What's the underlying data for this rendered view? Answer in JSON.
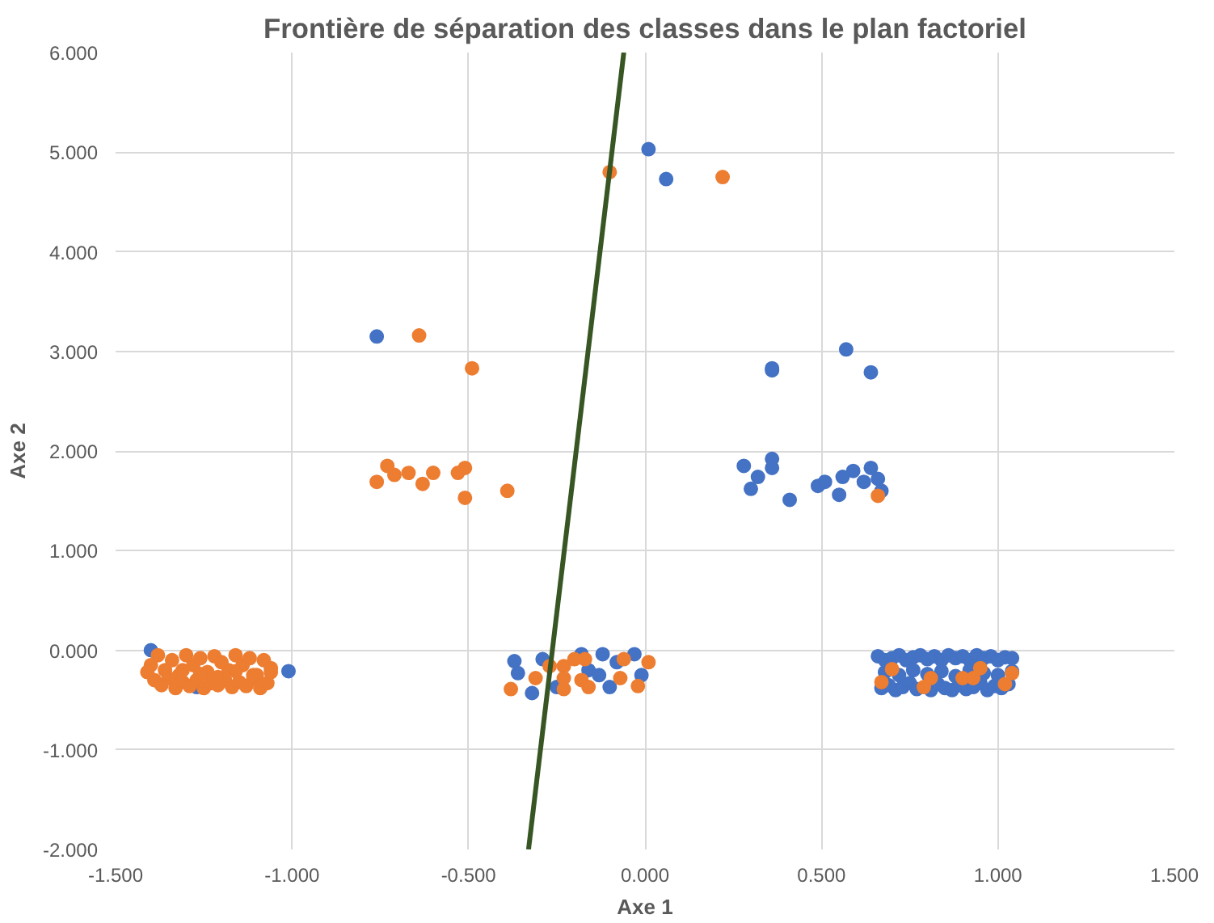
{
  "chart_data": {
    "type": "scatter",
    "title": "Frontière de séparation des classes dans le plan factoriel",
    "xlabel": "Axe 1",
    "ylabel": "Axe 2",
    "xlim": [
      -1.5,
      1.5
    ],
    "ylim": [
      -2,
      6
    ],
    "xticks": [
      {
        "value": -1.5,
        "label": "-1.500"
      },
      {
        "value": -1,
        "label": "-1.000"
      },
      {
        "value": -0.5,
        "label": "-0.500"
      },
      {
        "value": 0,
        "label": "0.000"
      },
      {
        "value": 0.5,
        "label": "0.500"
      },
      {
        "value": 1,
        "label": "1.000"
      },
      {
        "value": 1.5,
        "label": "1.500"
      }
    ],
    "yticks": [
      {
        "value": -2,
        "label": "-2.000"
      },
      {
        "value": -1,
        "label": "-1.000"
      },
      {
        "value": 0,
        "label": "0.000"
      },
      {
        "value": 1,
        "label": "1.000"
      },
      {
        "value": 2,
        "label": "2.000"
      },
      {
        "value": 3,
        "label": "3.000"
      },
      {
        "value": 4,
        "label": "4.000"
      },
      {
        "value": 5,
        "label": "5.000"
      },
      {
        "value": 6,
        "label": "6.000"
      }
    ],
    "grid": true,
    "marker": "circle",
    "series": [
      {
        "color": "#4472c4",
        "x": [
          -0.76,
          0.01,
          0.06,
          0.36,
          0.36,
          0.57,
          0.64,
          0.28,
          0.32,
          0.3,
          0.36,
          0.36,
          0.41,
          0.49,
          0.51,
          0.55,
          0.56,
          0.59,
          0.62,
          0.64,
          0.66,
          0.67,
          -1.4,
          -1.01,
          -1.27,
          -0.37,
          -0.36,
          -0.32,
          -0.29,
          -0.18,
          -0.12,
          -0.13,
          -0.1,
          -0.03,
          -0.01,
          -0.25,
          -0.16,
          -0.08,
          0.66,
          0.68,
          0.7,
          0.72,
          0.74,
          0.76,
          0.78,
          0.8,
          0.82,
          0.84,
          0.86,
          0.88,
          0.9,
          0.92,
          0.94,
          0.96,
          0.98,
          1.0,
          1.02,
          1.04,
          0.67,
          0.69,
          0.71,
          0.73,
          0.75,
          0.77,
          0.81,
          0.83,
          0.85,
          0.87,
          0.89,
          0.91,
          0.93,
          0.95,
          0.97,
          0.99,
          1.01,
          1.03,
          0.68,
          0.72,
          0.76,
          0.8,
          0.84,
          0.88,
          0.92,
          0.96,
          1.0,
          1.04
        ],
        "values": [
          3.15,
          5.03,
          4.73,
          2.81,
          2.83,
          3.02,
          2.79,
          1.85,
          1.74,
          1.62,
          1.92,
          1.83,
          1.51,
          1.65,
          1.69,
          1.56,
          1.74,
          1.8,
          1.69,
          1.83,
          1.72,
          1.6,
          0.0,
          -0.21,
          -0.37,
          -0.11,
          -0.23,
          -0.43,
          -0.09,
          -0.04,
          -0.04,
          -0.25,
          -0.37,
          -0.04,
          -0.25,
          -0.37,
          -0.2,
          -0.12,
          -0.06,
          -0.1,
          -0.08,
          -0.05,
          -0.1,
          -0.07,
          -0.05,
          -0.09,
          -0.06,
          -0.1,
          -0.05,
          -0.08,
          -0.06,
          -0.1,
          -0.05,
          -0.08,
          -0.06,
          -0.1,
          -0.07,
          -0.08,
          -0.38,
          -0.35,
          -0.4,
          -0.37,
          -0.33,
          -0.39,
          -0.4,
          -0.34,
          -0.38,
          -0.4,
          -0.35,
          -0.39,
          -0.37,
          -0.33,
          -0.4,
          -0.36,
          -0.38,
          -0.34,
          -0.22,
          -0.25,
          -0.2,
          -0.24,
          -0.21,
          -0.26,
          -0.2,
          -0.23,
          -0.25,
          -0.21
        ]
      },
      {
        "color": "#ed7d31",
        "x": [
          -0.64,
          -0.49,
          -0.1,
          0.22,
          -0.76,
          -0.73,
          -0.71,
          -0.67,
          -0.63,
          -0.6,
          -0.53,
          -0.51,
          -0.51,
          -0.39,
          0.66,
          0.7,
          0.67,
          0.81,
          0.79,
          0.9,
          0.93,
          0.95,
          1.04,
          1.02,
          -0.38,
          -0.31,
          -0.27,
          -0.23,
          -0.23,
          -0.2,
          -0.17,
          -0.18,
          -0.16,
          -0.06,
          -0.07,
          -0.02,
          0.01,
          -0.23,
          -1.4,
          -1.38,
          -1.36,
          -1.34,
          -1.32,
          -1.3,
          -1.28,
          -1.26,
          -1.24,
          -1.22,
          -1.2,
          -1.18,
          -1.16,
          -1.14,
          -1.12,
          -1.1,
          -1.08,
          -1.06,
          -1.39,
          -1.37,
          -1.35,
          -1.33,
          -1.31,
          -1.29,
          -1.27,
          -1.25,
          -1.23,
          -1.21,
          -1.19,
          -1.17,
          -1.15,
          -1.13,
          -1.11,
          -1.09,
          -1.07,
          -1.41,
          -1.31,
          -1.26,
          -1.21,
          -1.16,
          -1.11,
          -1.06
        ],
        "values": [
          3.16,
          2.83,
          4.8,
          4.75,
          1.69,
          1.85,
          1.76,
          1.78,
          1.67,
          1.78,
          1.78,
          1.83,
          1.53,
          1.6,
          1.55,
          -0.19,
          -0.32,
          -0.28,
          -0.37,
          -0.28,
          -0.28,
          -0.18,
          -0.23,
          -0.34,
          -0.39,
          -0.28,
          -0.16,
          -0.16,
          -0.28,
          -0.09,
          -0.09,
          -0.3,
          -0.37,
          -0.09,
          -0.28,
          -0.36,
          -0.12,
          -0.39,
          -0.15,
          -0.05,
          -0.2,
          -0.1,
          -0.25,
          -0.05,
          -0.15,
          -0.08,
          -0.22,
          -0.06,
          -0.12,
          -0.2,
          -0.05,
          -0.15,
          -0.08,
          -0.25,
          -0.1,
          -0.18,
          -0.3,
          -0.35,
          -0.28,
          -0.38,
          -0.32,
          -0.36,
          -0.3,
          -0.38,
          -0.33,
          -0.35,
          -0.3,
          -0.37,
          -0.32,
          -0.36,
          -0.29,
          -0.38,
          -0.33,
          -0.22,
          -0.2,
          -0.24,
          -0.27,
          -0.21,
          -0.25,
          -0.22
        ]
      },
      {
        "color": "#375623",
        "type": "line",
        "x": [
          -0.06,
          -0.33
        ],
        "values": [
          6,
          -2
        ],
        "line_style": "solid",
        "marker": "none"
      }
    ]
  }
}
